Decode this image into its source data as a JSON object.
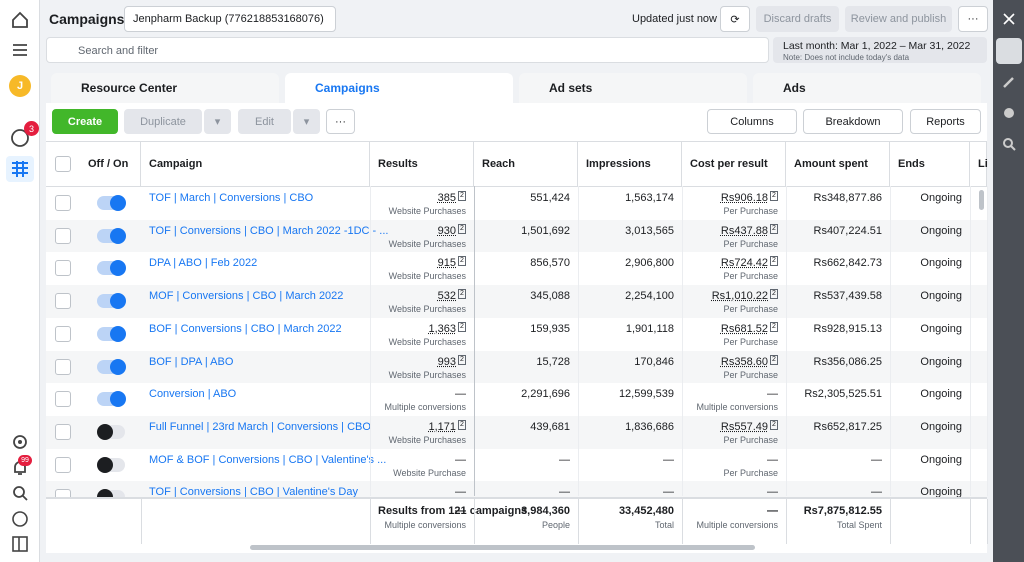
{
  "header": {
    "title": "Campaigns",
    "account": "Jenpharm Backup (776218853168076)",
    "updated": "Updated just now",
    "discard": "Discard drafts",
    "publish": "Review and publish"
  },
  "search": {
    "placeholder": "Search and filter"
  },
  "date": {
    "range": "Last month: Mar 1, 2022 – Mar 31, 2022",
    "note": "Note: Does not include today's data"
  },
  "sidebar": {
    "avatar": "J",
    "badge": "3",
    "notifications": "99"
  },
  "tabs": [
    "Resource Center",
    "Campaigns",
    "Ad sets",
    "Ads"
  ],
  "toolbar": {
    "create": "Create",
    "duplicate": "Duplicate",
    "edit": "Edit",
    "columns": "Columns",
    "breakdown": "Breakdown",
    "reports": "Reports"
  },
  "table": {
    "columns": [
      "Off / On",
      "Campaign",
      "Results",
      "Reach",
      "Impressions",
      "Cost per result",
      "Amount spent",
      "Ends",
      "Li"
    ],
    "note_mark": "2",
    "rows": [
      {
        "on": true,
        "noted": true,
        "campaign": "TOF | March | Conversions | CBO",
        "results": "385",
        "results_sub": "Website Purchases",
        "reach": "551,424",
        "impressions": "1,563,174",
        "cost": "Rs906.18",
        "cost_sub": "Per Purchase",
        "spent": "Rs348,877.86",
        "ends": "Ongoing"
      },
      {
        "on": true,
        "noted": true,
        "campaign": "TOF | Conversions | CBO | March 2022 -1DC - ...",
        "results": "930",
        "results_sub": "Website Purchases",
        "reach": "1,501,692",
        "impressions": "3,013,565",
        "cost": "Rs437.88",
        "cost_sub": "Per Purchase",
        "spent": "Rs407,224.51",
        "ends": "Ongoing"
      },
      {
        "on": true,
        "noted": true,
        "campaign": "DPA | ABO | Feb 2022",
        "results": "915",
        "results_sub": "Website Purchases",
        "reach": "856,570",
        "impressions": "2,906,800",
        "cost": "Rs724.42",
        "cost_sub": "Per Purchase",
        "spent": "Rs662,842.73",
        "ends": "Ongoing"
      },
      {
        "on": true,
        "noted": true,
        "campaign": "MOF | Conversions | CBO | March 2022",
        "results": "532",
        "results_sub": "Website Purchases",
        "reach": "345,088",
        "impressions": "2,254,100",
        "cost": "Rs1,010.22",
        "cost_sub": "Per Purchase",
        "spent": "Rs537,439.58",
        "ends": "Ongoing"
      },
      {
        "on": true,
        "noted": true,
        "campaign": "BOF | Conversions | CBO | March 2022",
        "results": "1,363",
        "results_sub": "Website Purchases",
        "reach": "159,935",
        "impressions": "1,901,118",
        "cost": "Rs681.52",
        "cost_sub": "Per Purchase",
        "spent": "Rs928,915.13",
        "ends": "Ongoing"
      },
      {
        "on": true,
        "noted": true,
        "campaign": "BOF | DPA | ABO",
        "results": "993",
        "results_sub": "Website Purchases",
        "reach": "15,728",
        "impressions": "170,846",
        "cost": "Rs358.60",
        "cost_sub": "Per Purchase",
        "spent": "Rs356,086.25",
        "ends": "Ongoing"
      },
      {
        "on": true,
        "noted": false,
        "campaign": "Conversion | ABO",
        "results": "—",
        "results_sub": "Multiple conversions",
        "reach": "2,291,696",
        "impressions": "12,599,539",
        "cost": "—",
        "cost_sub": "Multiple conversions",
        "spent": "Rs2,305,525.51",
        "ends": "Ongoing"
      },
      {
        "on": false,
        "noted": true,
        "campaign": "Full Funnel | 23rd March | Conversions | CBO",
        "results": "1,171",
        "results_sub": "Website Purchases",
        "reach": "439,681",
        "impressions": "1,836,686",
        "cost": "Rs557.49",
        "cost_sub": "Per Purchase",
        "spent": "Rs652,817.25",
        "ends": "Ongoing"
      },
      {
        "on": false,
        "noted": false,
        "campaign": "MOF & BOF | Conversions | CBO | Valentine's ...",
        "results": "—",
        "results_sub": "Website Purchase",
        "reach": "—",
        "impressions": "—",
        "cost": "—",
        "cost_sub": "Per Purchase",
        "spent": "—",
        "ends": "Ongoing"
      },
      {
        "on": false,
        "noted": false,
        "campaign": "TOF | Conversions | CBO | Valentine's Day",
        "results": "—",
        "reach": "—",
        "impressions": "—",
        "cost": "—",
        "spent": "—",
        "ends": "Ongoing"
      }
    ],
    "footer": {
      "label": "Results from 121 campaigns",
      "results": "—",
      "results_sub": "Multiple conversions",
      "reach": "3,984,360",
      "reach_sub": "People",
      "impressions": "33,452,480",
      "impressions_sub": "Total",
      "cost": "—",
      "cost_sub": "Multiple conversions",
      "spent": "Rs7,875,812.55",
      "spent_sub": "Total Spent"
    }
  }
}
